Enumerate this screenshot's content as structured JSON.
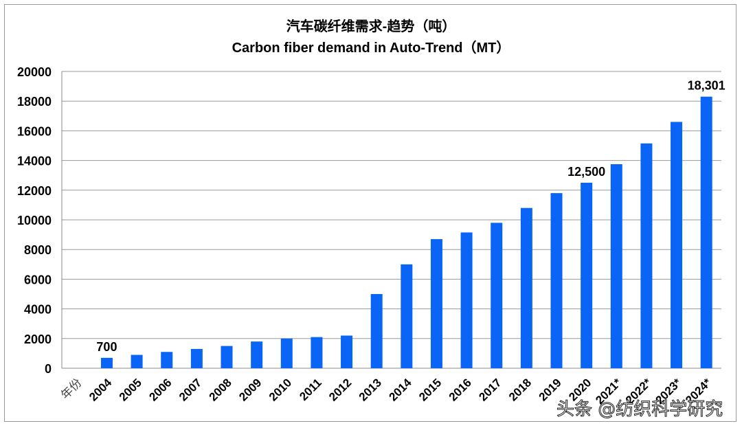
{
  "chart_data": {
    "type": "bar",
    "title": "汽车碳纤维需求-趋势（吨）",
    "subtitle": "Carbon fiber demand in Auto-Trend（MT）",
    "xlabel": "年份",
    "ylabel": "",
    "categories": [
      "2004",
      "2005",
      "2006",
      "2007",
      "2008",
      "2009",
      "2010",
      "2011",
      "2012",
      "2013",
      "2014",
      "2015",
      "2016",
      "2017",
      "2018",
      "2019",
      "2020",
      "2021*",
      "2022*",
      "2023*",
      "2024*"
    ],
    "values": [
      700,
      900,
      1100,
      1300,
      1500,
      1800,
      2000,
      2100,
      2200,
      5000,
      7000,
      8700,
      9150,
      9800,
      10800,
      11800,
      12500,
      13750,
      15150,
      16600,
      18301
    ],
    "data_labels": {
      "2004": "700",
      "2020": "12,500",
      "2024*": "18,301"
    },
    "ylim": [
      0,
      20000
    ],
    "yticks": [
      "0",
      "2000",
      "4000",
      "6000",
      "8000",
      "10000",
      "12000",
      "14000",
      "16000",
      "18000",
      "20000"
    ],
    "grid": true,
    "legend": "none",
    "bar_color": "#0A64F5"
  },
  "watermark": "头条 @纺织科学研究"
}
